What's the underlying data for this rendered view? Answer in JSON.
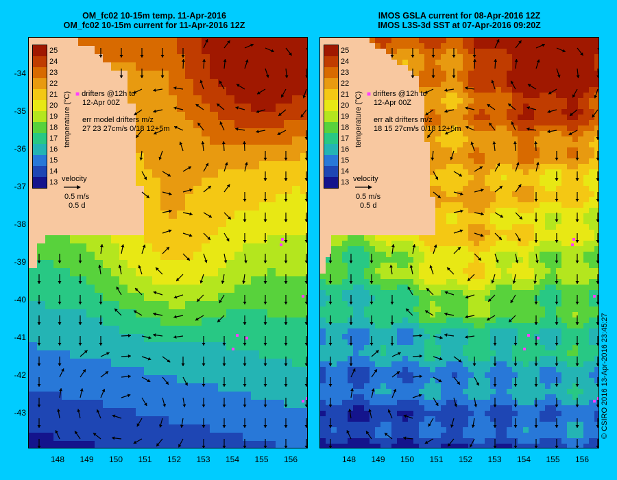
{
  "left": {
    "title_line1": "OM_fc02 10-15m temp. 11-Apr-2016",
    "title_line2": "OM_fc02 10-15m current for 11-Apr-2016 12Z",
    "drifters_line1": "drifters @12h to",
    "drifters_line2": "12-Apr 00Z",
    "err_line1": "err model drifters m/z",
    "err_line2": "27 23 27cm/s 0/18 12+5m",
    "velocity_label": "velocity",
    "velocity_value": "0.5 m/s",
    "velocity_days": "0.5 d"
  },
  "right": {
    "title_line1": "IMOS GSLA current for 08-Apr-2016 12Z",
    "title_line2": "IMOS L3S-3d SST at 07-Apr-2016 09:20Z",
    "drifters_line1": "drifters @12h to",
    "drifters_line2": "12-Apr 00Z",
    "err_line1": "err alt drifters m/z",
    "err_line2": "18 15 27cm/s 0/18 12+5m",
    "velocity_label": "velocity",
    "velocity_value": "0.5 m/s",
    "velocity_days": "0.5 d"
  },
  "colorbar": {
    "title": "temperature (°C)",
    "ticks": [
      "25",
      "24",
      "23",
      "22",
      "21",
      "20",
      "19",
      "18",
      "17",
      "16",
      "15",
      "14",
      "13"
    ],
    "colors": [
      "#a01800",
      "#c03c00",
      "#d86a00",
      "#e89a10",
      "#f4c814",
      "#e8e814",
      "#b4e61e",
      "#58d23c",
      "#28c884",
      "#24b4b4",
      "#2878d8",
      "#1e46b4",
      "#14148c"
    ]
  },
  "latitudes": [
    "-34",
    "-35",
    "-36",
    "-37",
    "-38",
    "-39",
    "-40",
    "-41",
    "-42",
    "-43"
  ],
  "longitudes": [
    "148",
    "149",
    "150",
    "151",
    "152",
    "153",
    "154",
    "155",
    "156"
  ],
  "copyright": "© CSIRO 2016   13-Apr-2016 23:45:27",
  "colors": {
    "background": "#00ccff",
    "land": "#f8c8a0",
    "drifter": "#ff40ff",
    "arrow": "#000000"
  }
}
